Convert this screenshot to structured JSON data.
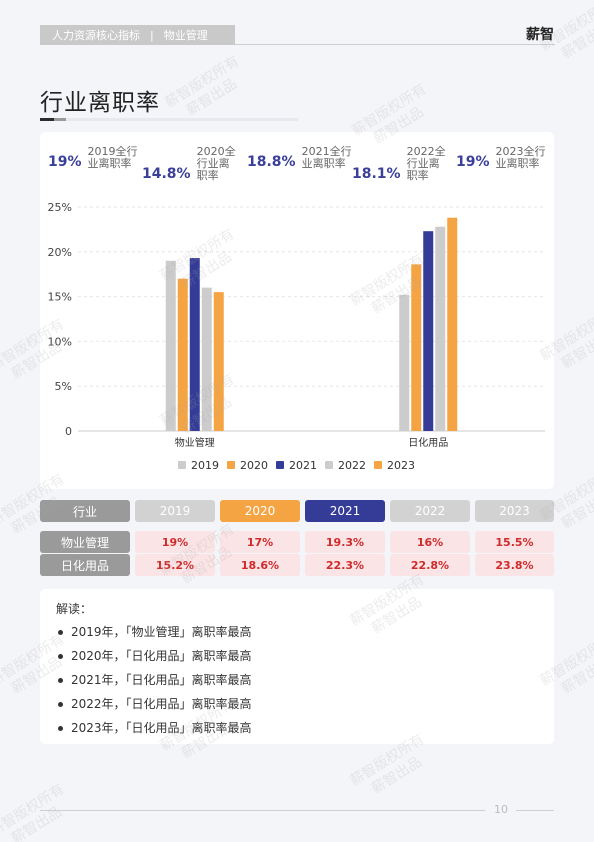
{
  "header": {
    "section": "人力资源核心指标",
    "separator": "|",
    "module": "物业管理",
    "brand": "薪智"
  },
  "page": {
    "title": "行业离职率",
    "number": "10"
  },
  "watermark": {
    "line1": "薪智版权所有",
    "line2": "薪智出品"
  },
  "kpis": [
    {
      "value": "19%",
      "label": "2019全行业离职率"
    },
    {
      "value": "14.8%",
      "label": "2020全行业离职率"
    },
    {
      "value": "18.8%",
      "label": "2021全行业离职率"
    },
    {
      "value": "18.1%",
      "label": "2022全行业离职率"
    },
    {
      "value": "19%",
      "label": "2023全行业离职率"
    }
  ],
  "colors": {
    "2019": "#cccccc",
    "2020": "#f5a443",
    "2021": "#343c97",
    "2022": "#cccccc",
    "2023": "#f5a443"
  },
  "chart_data": {
    "type": "bar",
    "categories": [
      "物业管理",
      "日化用品"
    ],
    "series": [
      {
        "name": "2019",
        "values": [
          19,
          15.2
        ]
      },
      {
        "name": "2020",
        "values": [
          17,
          18.6
        ]
      },
      {
        "name": "2021",
        "values": [
          19.3,
          22.3
        ]
      },
      {
        "name": "2022",
        "values": [
          16,
          22.8
        ]
      },
      {
        "name": "2023",
        "values": [
          15.5,
          23.8
        ]
      }
    ],
    "yticks": [
      "0",
      "5%",
      "10%",
      "15%",
      "20%",
      "25%"
    ],
    "ylim": [
      0,
      25
    ],
    "legend_position": "bottom",
    "grid": true
  },
  "table": {
    "header_label": "行业",
    "years": [
      "2019",
      "2020",
      "2021",
      "2022",
      "2023"
    ],
    "rows": [
      {
        "name": "物业管理",
        "values": [
          "19%",
          "17%",
          "19.3%",
          "16%",
          "15.5%"
        ]
      },
      {
        "name": "日化用品",
        "values": [
          "15.2%",
          "18.6%",
          "22.3%",
          "22.8%",
          "23.8%"
        ]
      }
    ]
  },
  "notes": {
    "title": "解读：",
    "items": [
      "2019年，「物业管理」离职率最高",
      "2020年，「日化用品」离职率最高",
      "2021年，「日化用品」离职率最高",
      "2022年，「日化用品」离职率最高",
      "2023年，「日化用品」离职率最高"
    ]
  }
}
